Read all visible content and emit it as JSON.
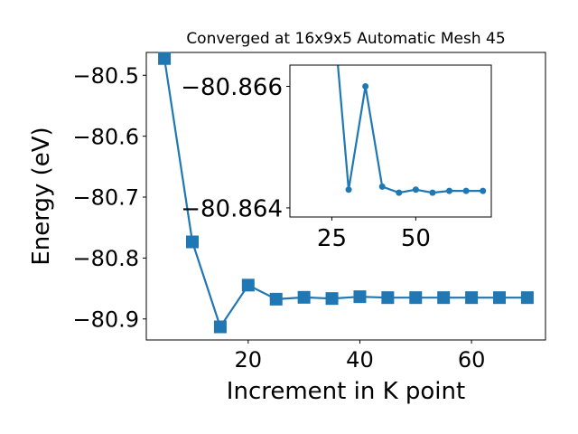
{
  "chart_data": [
    {
      "type": "line",
      "title": "Converged at 16x9x5 Automatic Mesh 45",
      "xlabel": "Increment in K point",
      "ylabel": "Energy (eV)",
      "xlim": [
        1.75,
        73.25
      ],
      "ylim": [
        -80.9345,
        -80.4625
      ],
      "xticks": [
        20,
        40,
        60
      ],
      "xtick_labels": [
        "20",
        "40",
        "60"
      ],
      "yticks": [
        -80.5,
        -80.6,
        -80.7,
        -80.8,
        -80.9
      ],
      "ytick_labels": [
        "−80.5",
        "−80.6",
        "−80.7",
        "−80.8",
        "−80.9"
      ],
      "marker": "square",
      "color": "#1f77b4",
      "grid": false,
      "x": [
        5,
        10,
        15,
        20,
        25,
        30,
        35,
        40,
        45,
        50,
        55,
        60,
        65,
        70
      ],
      "y": [
        -80.4725,
        -80.7735,
        -80.913,
        -80.8445,
        -80.8675,
        -80.8645,
        -80.8665,
        -80.8635,
        -80.865,
        -80.865,
        -80.865,
        -80.865,
        -80.865,
        -80.865
      ]
    },
    {
      "type": "line",
      "title": "",
      "inset": true,
      "xlim": [
        12.5,
        72.5
      ],
      "ylim": [
        -80.86385,
        -80.86635
      ],
      "xticks": [
        25,
        50
      ],
      "xtick_labels": [
        "25",
        "50"
      ],
      "yticks": [
        -80.866,
        -80.864
      ],
      "ytick_labels": [
        "−80.866",
        "−80.864"
      ],
      "marker": "circle",
      "color": "#1f77b4",
      "grid": false,
      "x": [
        25,
        30,
        35,
        40,
        45,
        50,
        55,
        60,
        65,
        70
      ],
      "y": [
        -80.8675,
        -80.8643,
        -80.866,
        -80.86435,
        -80.86425,
        -80.8643,
        -80.86425,
        -80.86428,
        -80.86428,
        -80.86428
      ]
    }
  ]
}
